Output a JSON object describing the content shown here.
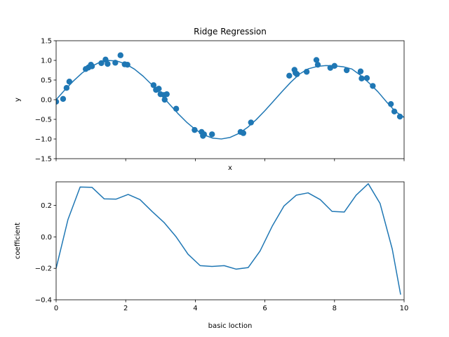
{
  "chart_data": [
    {
      "type": "scatter",
      "title": "Ridge Regression",
      "xlabel": "x",
      "ylabel": "y",
      "xlim": [
        0,
        10
      ],
      "ylim": [
        -1.5,
        1.5
      ],
      "xticks": [
        0,
        2,
        4,
        6,
        8,
        10
      ],
      "xtick_labels_visible": false,
      "yticks": [
        -1.5,
        -1.0,
        -0.5,
        0.0,
        0.5,
        1.0,
        1.5
      ],
      "ytick_labels": [
        "−1.5",
        "−1.0",
        "−0.5",
        "0.0",
        "0.5",
        "1.0",
        "1.5"
      ],
      "color": "#1f77b4",
      "series": [
        {
          "kind": "points",
          "x": [
            0.0,
            0.2,
            0.3,
            0.38,
            0.85,
            0.93,
            1.0,
            1.03,
            1.3,
            1.42,
            1.48,
            1.7,
            1.85,
            1.97,
            2.05,
            2.8,
            2.87,
            2.95,
            3.0,
            3.1,
            3.12,
            3.18,
            3.45,
            3.98,
            4.18,
            4.22,
            4.25,
            4.48,
            5.3,
            5.38,
            5.6,
            6.7,
            6.85,
            6.88,
            6.92,
            7.2,
            7.48,
            7.52,
            7.88,
            8.0,
            8.35,
            8.75,
            8.78,
            8.93,
            9.1,
            9.62,
            9.72,
            9.88
          ],
          "y": [
            -0.05,
            0.02,
            0.3,
            0.46,
            0.78,
            0.82,
            0.89,
            0.85,
            0.93,
            1.02,
            0.91,
            0.94,
            1.13,
            0.9,
            0.89,
            0.37,
            0.25,
            0.28,
            0.14,
            0.12,
            0.0,
            0.14,
            -0.23,
            -0.77,
            -0.82,
            -0.92,
            -0.88,
            -0.88,
            -0.82,
            -0.85,
            -0.58,
            0.61,
            0.76,
            0.68,
            0.65,
            0.71,
            1.01,
            0.89,
            0.81,
            0.86,
            0.75,
            0.72,
            0.54,
            0.55,
            0.35,
            -0.11,
            -0.3,
            -0.43
          ]
        },
        {
          "kind": "fit-line",
          "x": [
            0.0,
            0.25,
            0.5,
            0.75,
            1.0,
            1.25,
            1.5,
            1.75,
            2.0,
            2.25,
            2.5,
            2.75,
            3.0,
            3.25,
            3.5,
            3.75,
            4.0,
            4.25,
            4.5,
            4.75,
            5.0,
            5.25,
            5.5,
            5.75,
            6.0,
            6.25,
            6.5,
            6.75,
            7.0,
            7.25,
            7.5,
            7.75,
            8.0,
            8.25,
            8.5,
            8.75,
            9.0,
            9.25,
            9.5,
            9.75,
            10.0
          ],
          "y": [
            0.0,
            0.247,
            0.479,
            0.682,
            0.841,
            0.949,
            0.997,
            0.984,
            0.909,
            0.778,
            0.598,
            0.382,
            0.141,
            -0.108,
            -0.351,
            -0.572,
            -0.757,
            -0.895,
            -0.978,
            -0.999,
            -0.959,
            -0.859,
            -0.706,
            -0.508,
            -0.279,
            -0.033,
            0.215,
            0.45,
            0.657,
            0.787,
            0.845,
            0.868,
            0.862,
            0.838,
            0.78,
            0.62,
            0.42,
            0.2,
            -0.06,
            -0.3,
            -0.45
          ]
        }
      ]
    },
    {
      "type": "line",
      "title": "",
      "xlabel": "basic loction",
      "ylabel": "coefficient",
      "xlim": [
        0,
        10
      ],
      "ylim": [
        -0.4,
        0.35
      ],
      "xticks": [
        0,
        2,
        4,
        6,
        8,
        10
      ],
      "xtick_labels": [
        "0",
        "2",
        "4",
        "6",
        "8",
        "10"
      ],
      "yticks": [
        -0.4,
        -0.2,
        0.0,
        0.2
      ],
      "ytick_labels": [
        "−0.4",
        "−0.2",
        "0.0",
        "0.2"
      ],
      "color": "#1f77b4",
      "series": [
        {
          "x": [
            0.0,
            0.34,
            0.69,
            1.03,
            1.38,
            1.72,
            2.07,
            2.41,
            2.76,
            3.1,
            3.45,
            3.79,
            4.14,
            4.48,
            4.83,
            5.17,
            5.52,
            5.86,
            6.21,
            6.55,
            6.9,
            7.24,
            7.59,
            7.93,
            8.28,
            8.62,
            8.97,
            9.31,
            9.66,
            9.9
          ],
          "y": [
            -0.2,
            0.11,
            0.317,
            0.315,
            0.242,
            0.24,
            0.27,
            0.237,
            0.161,
            0.092,
            0.0,
            -0.11,
            -0.183,
            -0.188,
            -0.183,
            -0.205,
            -0.195,
            -0.09,
            0.068,
            0.197,
            0.265,
            0.28,
            0.237,
            0.162,
            0.158,
            0.265,
            0.338,
            0.212,
            -0.078,
            -0.367
          ]
        }
      ]
    }
  ]
}
